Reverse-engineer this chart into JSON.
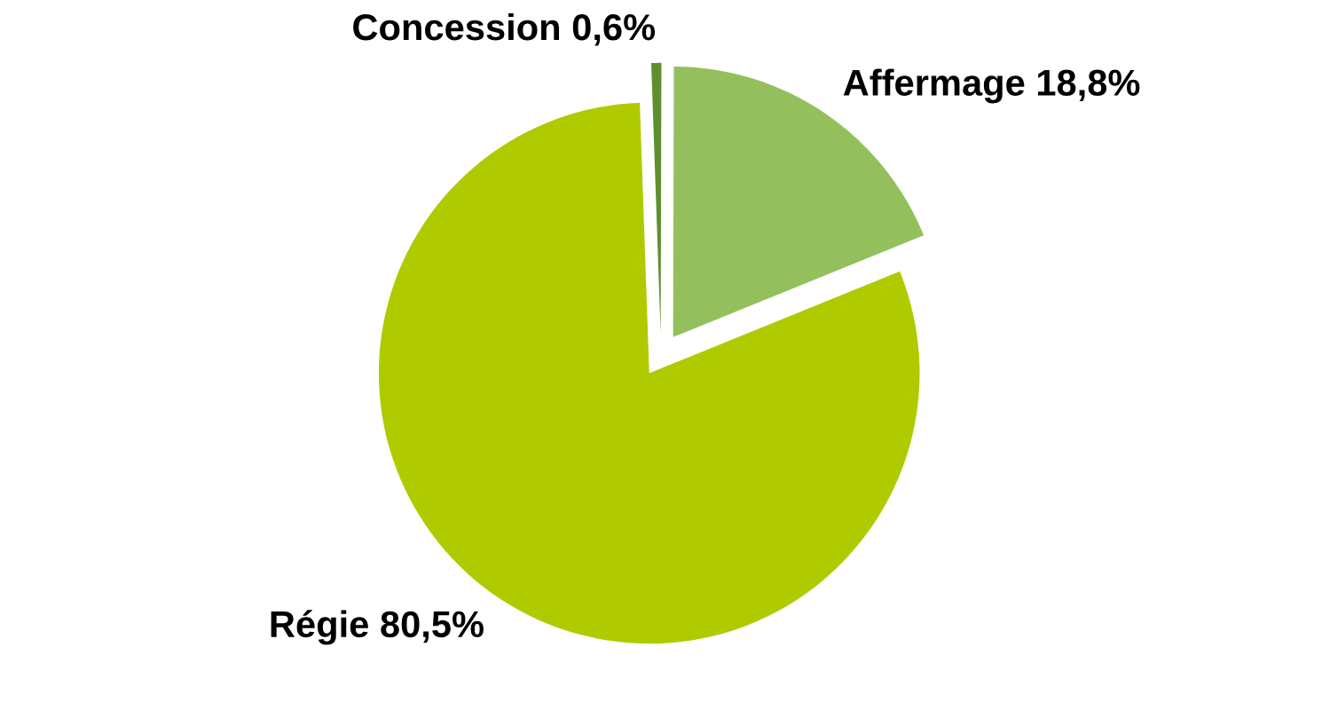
{
  "chart_data": {
    "type": "pie",
    "categories": [
      "Concession",
      "Affermage",
      "Régie"
    ],
    "values": [
      0.6,
      18.8,
      80.5
    ],
    "value_labels": [
      "0,6%",
      "18,8%",
      "80,5%"
    ],
    "colors": [
      "#5e8f2f",
      "#93c05c",
      "#afcb00"
    ]
  }
}
